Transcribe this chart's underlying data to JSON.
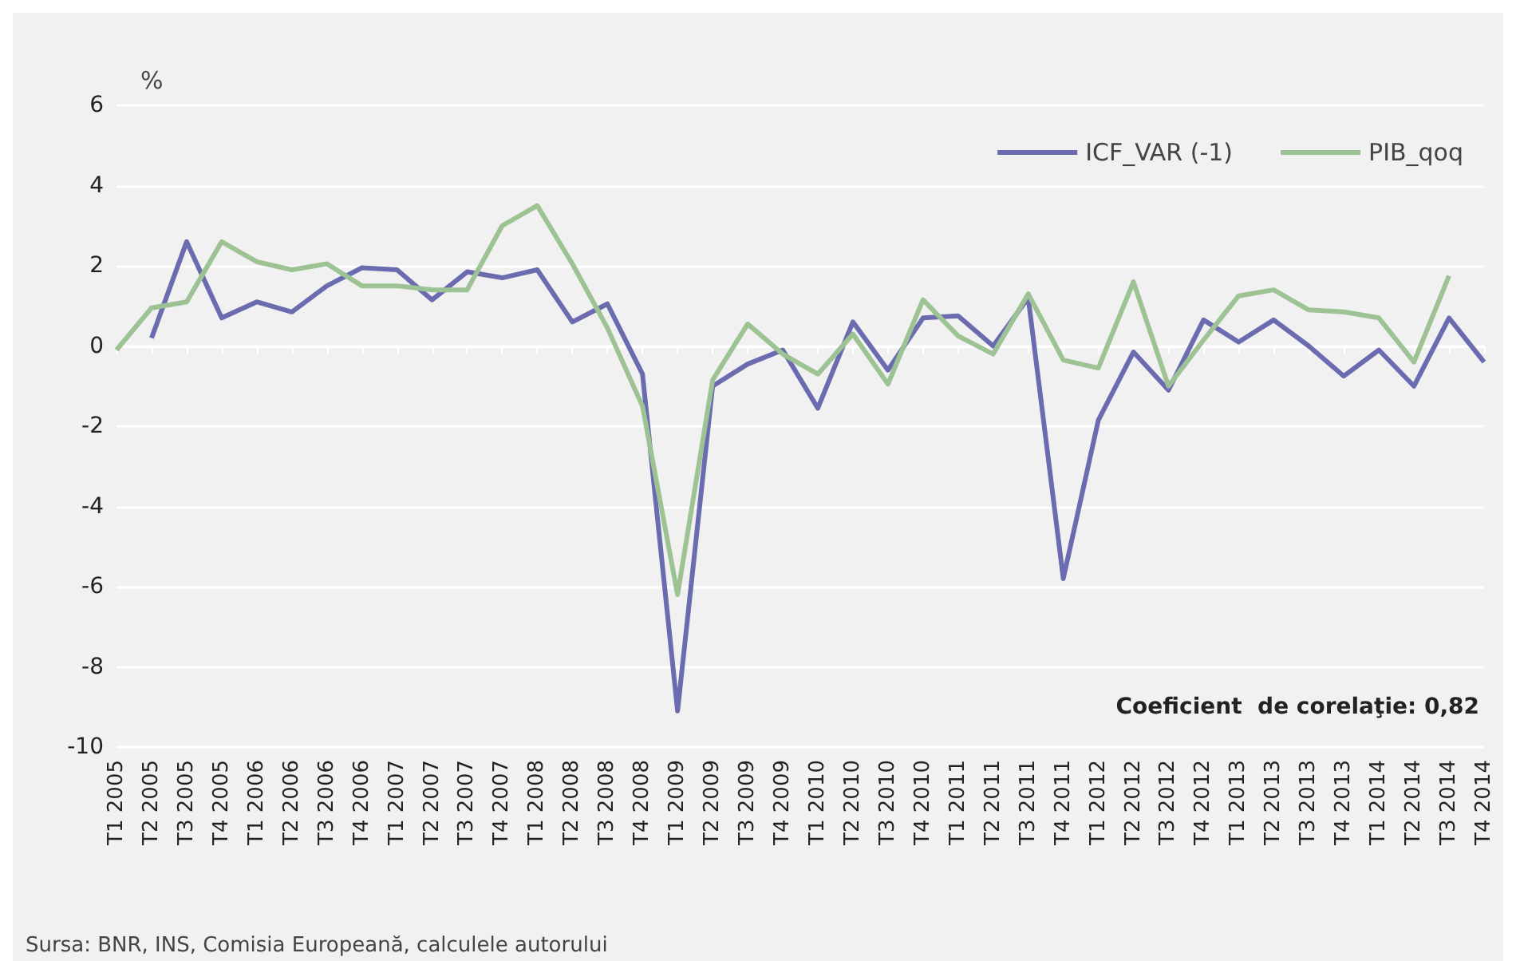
{
  "chart_data": {
    "type": "line",
    "ylabel": "%",
    "categories": [
      "T1 2005",
      "T2 2005",
      "T3 2005",
      "T4 2005",
      "T1 2006",
      "T2 2006",
      "T3 2006",
      "T4 2006",
      "T1 2007",
      "T2 2007",
      "T3 2007",
      "T4 2007",
      "T1 2008",
      "T2 2008",
      "T3 2008",
      "T4 2008",
      "T1 2009",
      "T2 2009",
      "T3 2009",
      "T4 2009",
      "T1 2010",
      "T2 2010",
      "T3 2010",
      "T4 2010",
      "T1 2011",
      "T2 2011",
      "T3 2011",
      "T4 2011",
      "T1 2012",
      "T2 2012",
      "T3 2012",
      "T4 2012",
      "T1 2013",
      "T2 2013",
      "T3 2013",
      "T4 2013",
      "T1 2014",
      "T2 2014",
      "T3 2014",
      "T4 2014"
    ],
    "series": [
      {
        "name": "ICF_VAR (-1)",
        "color": "#6b6bb0",
        "values": [
          null,
          0.2,
          2.6,
          0.7,
          1.1,
          0.85,
          1.5,
          1.95,
          1.9,
          1.15,
          1.85,
          1.7,
          1.9,
          0.6,
          1.05,
          -0.7,
          -9.1,
          -1.0,
          -0.45,
          -0.1,
          -1.55,
          0.6,
          -0.6,
          0.7,
          0.75,
          0.0,
          1.2,
          -5.8,
          -1.85,
          -0.15,
          -1.1,
          0.65,
          0.1,
          0.65,
          0.0,
          -0.75,
          -0.1,
          -1.0,
          0.7,
          -0.4
        ]
      },
      {
        "name": "PIB_qoq",
        "color": "#9dc394",
        "values": [
          -0.1,
          0.95,
          1.1,
          2.6,
          2.1,
          1.9,
          2.05,
          1.5,
          1.5,
          1.4,
          1.4,
          3.0,
          3.5,
          2.05,
          0.45,
          -1.5,
          -6.2,
          -0.85,
          0.55,
          -0.2,
          -0.7,
          0.3,
          -0.95,
          1.15,
          0.25,
          -0.2,
          1.3,
          -0.35,
          -0.55,
          1.6,
          -1.0,
          0.15,
          1.25,
          1.4,
          0.9,
          0.85,
          0.7,
          -0.4,
          1.75,
          null
        ]
      }
    ],
    "ylim": [
      -10,
      6
    ],
    "yticks": [
      -10,
      -8,
      -6,
      -4,
      -2,
      0,
      2,
      4,
      6
    ],
    "grid": "y",
    "legend": "top right",
    "marker": "none",
    "line_style": "solid",
    "annotations": [
      "Coeficient  de corelaţie: 0,82",
      "Sursa: BNR, INS, Comisia Europeană, calculele autorului"
    ]
  }
}
